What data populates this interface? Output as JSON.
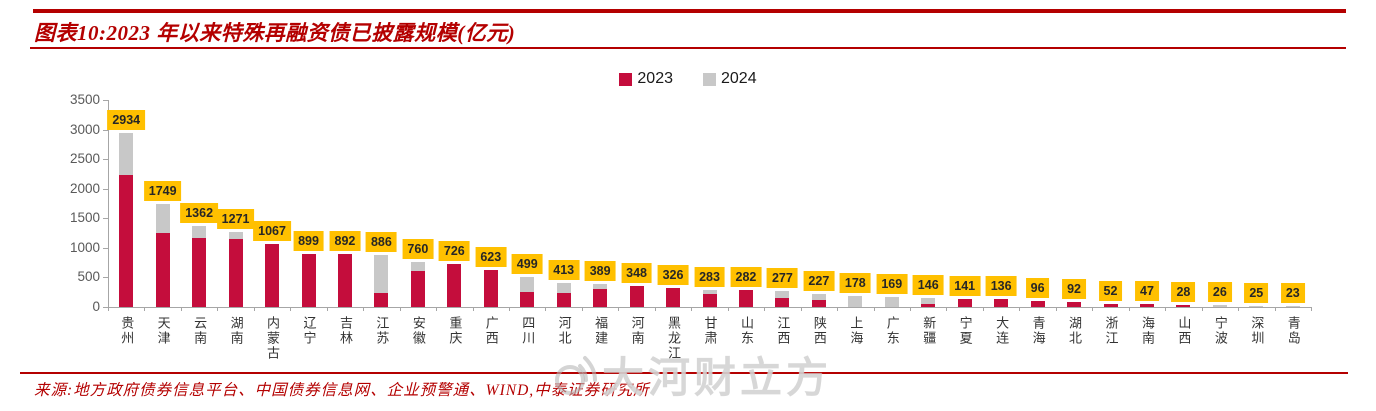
{
  "header": {
    "title": "图表10:2023 年以来特殊再融资债已披露规模(亿元)"
  },
  "chart_data": {
    "type": "bar",
    "variant": "stacked",
    "title": "2023 年以来特殊再融资债已披露规模(亿元)",
    "unit": "亿元",
    "grid": false,
    "legend_position": "top-center",
    "categories": [
      "贵州",
      "天津",
      "云南",
      "湖南",
      "内蒙古",
      "辽宁",
      "吉林",
      "江苏",
      "安徽",
      "重庆",
      "广西",
      "四川",
      "河北",
      "福建",
      "河南",
      "黑龙江",
      "甘肃",
      "山东",
      "江西",
      "陕西",
      "上海",
      "广东",
      "新疆",
      "宁夏",
      "大连",
      "青海",
      "湖北",
      "浙江",
      "海南",
      "山西",
      "宁波",
      "深圳",
      "青岛"
    ],
    "series": [
      {
        "name": "2023",
        "color": "#c40d3c",
        "values": [
          2230,
          1255,
          1170,
          1150,
          1067,
          899,
          892,
          232,
          610,
          726,
          623,
          255,
          240,
          300,
          348,
          326,
          215,
          282,
          150,
          110,
          0,
          0,
          55,
          141,
          136,
          96,
          92,
          52,
          47,
          28,
          0,
          0,
          0
        ]
      },
      {
        "name": "2024",
        "color": "#c8c8c8",
        "values": [
          704,
          494,
          192,
          121,
          0,
          0,
          0,
          654,
          150,
          0,
          0,
          244,
          173,
          89,
          0,
          0,
          68,
          0,
          127,
          117,
          178,
          169,
          91,
          0,
          0,
          0,
          0,
          0,
          0,
          0,
          26,
          25,
          23
        ]
      }
    ],
    "totals": [
      2934,
      1749,
      1362,
      1271,
      1067,
      899,
      892,
      886,
      760,
      726,
      623,
      499,
      413,
      389,
      348,
      326,
      283,
      282,
      277,
      227,
      178,
      169,
      146,
      141,
      136,
      96,
      92,
      52,
      47,
      28,
      26,
      25,
      23
    ],
    "y_axis": {
      "min": 0,
      "max": 3500,
      "step": 500,
      "ticks": [
        0,
        500,
        1000,
        1500,
        2000,
        2500,
        3000,
        3500
      ]
    },
    "value_label_bg": "#ffc000"
  },
  "footer": {
    "source": "来源:地方政府债券信息平台、中国债券信息网、企业预警通、WIND,中泰证券研究所"
  },
  "watermark": {
    "text": "大河财立方",
    "icon": "sound-wave-logo-icon"
  }
}
